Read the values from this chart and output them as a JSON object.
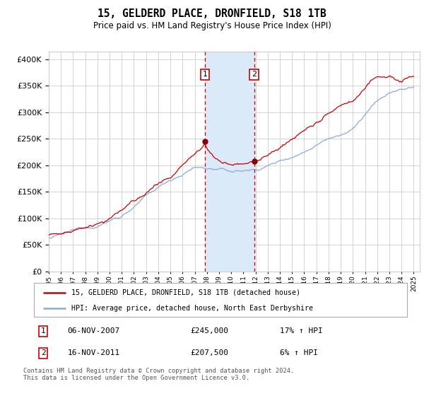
{
  "title": "15, GELDERD PLACE, DRONFIELD, S18 1TB",
  "subtitle": "Price paid vs. HM Land Registry's House Price Index (HPI)",
  "ytick_values": [
    0,
    50000,
    100000,
    150000,
    200000,
    250000,
    300000,
    350000,
    400000
  ],
  "ylim": [
    0,
    415000
  ],
  "xlim_start": 1995.0,
  "xlim_end": 2025.5,
  "sale1_date": 2007.85,
  "sale1_label": "1",
  "sale1_price": 245000,
  "sale2_date": 2011.88,
  "sale2_label": "2",
  "sale2_price": 207500,
  "sale_color": "#cc0000",
  "hpi_color": "#88aadd",
  "shade_color": "#daeaf8",
  "grid_color": "#cccccc",
  "dot_color": "#880000",
  "legend_entry1": "15, GELDERD PLACE, DRONFIELD, S18 1TB (detached house)",
  "legend_entry2": "HPI: Average price, detached house, North East Derbyshire",
  "table_row1": [
    "1",
    "06-NOV-2007",
    "£245,000",
    "17% ↑ HPI"
  ],
  "table_row2": [
    "2",
    "16-NOV-2011",
    "£207,500",
    "6% ↑ HPI"
  ],
  "footnote": "Contains HM Land Registry data © Crown copyright and database right 2024.\nThis data is licensed under the Open Government Licence v3.0.",
  "background": "#ffffff"
}
